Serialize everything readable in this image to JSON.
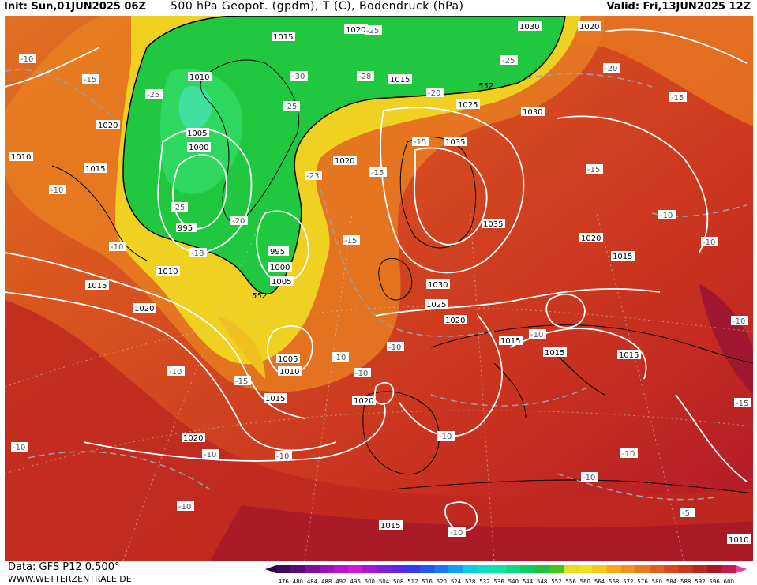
{
  "header": {
    "init": "Init: Sun,01JUN2025 06Z",
    "title": "500 hPa Geopot. (gpdm), T (C), Bodendruck (hPa)",
    "valid": "Valid: Fri,13JUN2025 12Z"
  },
  "footer": {
    "data_source": "Data: GFS P12 0.500°",
    "url": "WWW.WETTERZENTRALE.DE"
  },
  "colors": {
    "land_border": "#000000",
    "isobar": "#ffffff",
    "isotherm": "#9aa0a8",
    "geopotential_552": "#000000"
  },
  "legend": {
    "values": [
      "476",
      "480",
      "484",
      "488",
      "492",
      "496",
      "500",
      "504",
      "508",
      "512",
      "516",
      "520",
      "524",
      "528",
      "532",
      "536",
      "540",
      "544",
      "548",
      "552",
      "556",
      "560",
      "564",
      "568",
      "572",
      "576",
      "580",
      "584",
      "588",
      "592",
      "596",
      "600"
    ],
    "colors": [
      "#3c0a5a",
      "#5a0a7a",
      "#7a10a0",
      "#9a12b8",
      "#b814c8",
      "#d018d8",
      "#a01ad8",
      "#7a1ee0",
      "#5a26e8",
      "#3a38ef",
      "#2a52f2",
      "#1a74f4",
      "#10a0f0",
      "#10c8e8",
      "#10dcc0",
      "#10e0a0",
      "#10d880",
      "#10cc60",
      "#20c040",
      "#40c820",
      "#e0e020",
      "#f0e020",
      "#f8c818",
      "#f8a818",
      "#f09020",
      "#e87820",
      "#e06020",
      "#d84820",
      "#c83820",
      "#b82820",
      "#a81820",
      "#c81850"
    ]
  },
  "map": {
    "isobar_labels": [
      "1015",
      "1010",
      "1010",
      "1020",
      "1005",
      "1000",
      "995",
      "1015",
      "1010",
      "1015",
      "1020",
      "1005",
      "1000",
      "995",
      "1005",
      "1010",
      "1015",
      "1020",
      "1020",
      "1035",
      "1030",
      "1025",
      "1030",
      "1035",
      "1020",
      "1015",
      "1025",
      "1020",
      "1015",
      "1015",
      "1015",
      "1020",
      "1010",
      "1015",
      "1020",
      "1020",
      "1030",
      "1015"
    ],
    "temp_labels": [
      "-10",
      "-15",
      "-25",
      "-25",
      "-30",
      "-25",
      "-28",
      "-25",
      "-20",
      "-20",
      "-15",
      "-15",
      "-23",
      "-20",
      "-25",
      "-18",
      "-10",
      "-10",
      "-15",
      "-15",
      "-15",
      "-10",
      "-10",
      "-10",
      "-10",
      "-10",
      "-10",
      "-10",
      "-10",
      "-15",
      "-10",
      "-10",
      "-10",
      "-5",
      "-10",
      "-15",
      "-10",
      "-10",
      "-10",
      "-10"
    ],
    "geopotential_labels": [
      "552",
      "552"
    ]
  }
}
